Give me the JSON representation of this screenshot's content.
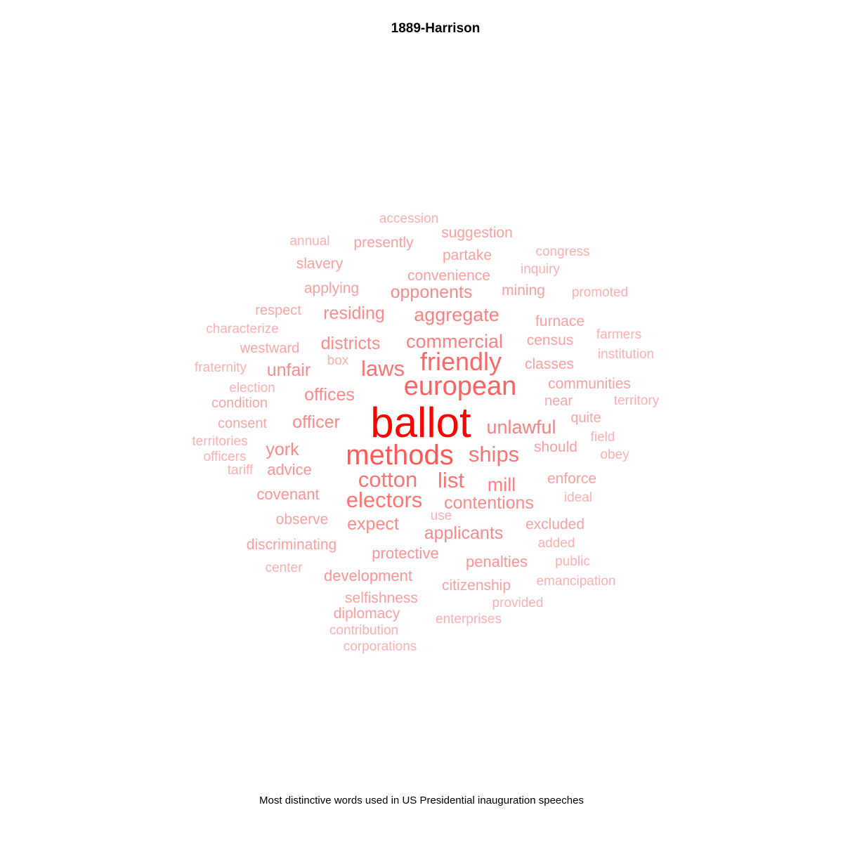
{
  "chart_data": {
    "type": "wordcloud",
    "title": "1889-Harrison",
    "caption": "Most distinctive words used in US Presidential inauguration speeches",
    "words": [
      {
        "text": "ballot",
        "weight": 1.0,
        "color": "#ff0000"
      },
      {
        "text": "methods",
        "weight": 0.62,
        "color": "#ff5a5a"
      },
      {
        "text": "european",
        "weight": 0.58,
        "color": "#ff6060"
      },
      {
        "text": "friendly",
        "weight": 0.55,
        "color": "#ff6666"
      },
      {
        "text": "ships",
        "weight": 0.46,
        "color": "#ff7373"
      },
      {
        "text": "electors",
        "weight": 0.46,
        "color": "#ff7373"
      },
      {
        "text": "cotton",
        "weight": 0.46,
        "color": "#ff7373"
      },
      {
        "text": "list",
        "weight": 0.46,
        "color": "#ff7373"
      },
      {
        "text": "laws",
        "weight": 0.46,
        "color": "#ff7373"
      },
      {
        "text": "unlawful",
        "weight": 0.38,
        "color": "#ff8080"
      },
      {
        "text": "commercial",
        "weight": 0.38,
        "color": "#ff8080"
      },
      {
        "text": "aggregate",
        "weight": 0.38,
        "color": "#ff8080"
      },
      {
        "text": "mill",
        "weight": 0.38,
        "color": "#ff8080"
      },
      {
        "text": "contentions",
        "weight": 0.34,
        "color": "#ff8a8a"
      },
      {
        "text": "offices",
        "weight": 0.34,
        "color": "#ff8a8a"
      },
      {
        "text": "officer",
        "weight": 0.34,
        "color": "#ff8a8a"
      },
      {
        "text": "districts",
        "weight": 0.34,
        "color": "#ff8a8a"
      },
      {
        "text": "opponents",
        "weight": 0.34,
        "color": "#ff8a8a"
      },
      {
        "text": "residing",
        "weight": 0.34,
        "color": "#ff8a8a"
      },
      {
        "text": "expect",
        "weight": 0.34,
        "color": "#ff8a8a"
      },
      {
        "text": "applicants",
        "weight": 0.34,
        "color": "#ff8a8a"
      },
      {
        "text": "unfair",
        "weight": 0.34,
        "color": "#ff8a8a"
      },
      {
        "text": "york",
        "weight": 0.34,
        "color": "#ff8a8a"
      },
      {
        "text": "development",
        "weight": 0.3,
        "color": "#ff9494"
      },
      {
        "text": "protective",
        "weight": 0.3,
        "color": "#ff9494"
      },
      {
        "text": "penalties",
        "weight": 0.3,
        "color": "#ff9494"
      },
      {
        "text": "covenant",
        "weight": 0.3,
        "color": "#ff9494"
      },
      {
        "text": "advice",
        "weight": 0.3,
        "color": "#ff9494"
      },
      {
        "text": "citizenship",
        "weight": 0.28,
        "color": "#ffa0a0"
      },
      {
        "text": "enforce",
        "weight": 0.28,
        "color": "#ffa0a0"
      },
      {
        "text": "classes",
        "weight": 0.28,
        "color": "#ffa0a0"
      },
      {
        "text": "should",
        "weight": 0.28,
        "color": "#ffa0a0"
      },
      {
        "text": "furnace",
        "weight": 0.28,
        "color": "#ffa0a0"
      },
      {
        "text": "selfishness",
        "weight": 0.28,
        "color": "#ffa0a0"
      },
      {
        "text": "observe",
        "weight": 0.28,
        "color": "#ffa0a0"
      },
      {
        "text": "excluded",
        "weight": 0.28,
        "color": "#ffa0a0"
      },
      {
        "text": "communities",
        "weight": 0.28,
        "color": "#ffa0a0"
      },
      {
        "text": "suggestion",
        "weight": 0.28,
        "color": "#ffa0a0"
      },
      {
        "text": "presently",
        "weight": 0.28,
        "color": "#ffa0a0"
      },
      {
        "text": "convenience",
        "weight": 0.28,
        "color": "#ffa0a0"
      },
      {
        "text": "partake",
        "weight": 0.28,
        "color": "#ffa0a0"
      },
      {
        "text": "slavery",
        "weight": 0.28,
        "color": "#ffa0a0"
      },
      {
        "text": "applying",
        "weight": 0.28,
        "color": "#ffa0a0"
      },
      {
        "text": "mining",
        "weight": 0.28,
        "color": "#ffa0a0"
      },
      {
        "text": "discriminating",
        "weight": 0.28,
        "color": "#ffa0a0"
      },
      {
        "text": "diplomacy",
        "weight": 0.28,
        "color": "#ffa0a0"
      },
      {
        "text": "census",
        "weight": 0.28,
        "color": "#ffa0a0"
      },
      {
        "text": "westward",
        "weight": 0.26,
        "color": "#ffa5a5"
      },
      {
        "text": "respect",
        "weight": 0.26,
        "color": "#ffa5a5"
      },
      {
        "text": "condition",
        "weight": 0.26,
        "color": "#ffa5a5"
      },
      {
        "text": "consent",
        "weight": 0.26,
        "color": "#ffa5a5"
      },
      {
        "text": "quite",
        "weight": 0.26,
        "color": "#ffa5a5"
      },
      {
        "text": "near",
        "weight": 0.26,
        "color": "#ffa5a5"
      },
      {
        "text": "enterprises",
        "weight": 0.24,
        "color": "#ffb0b0"
      },
      {
        "text": "provided",
        "weight": 0.24,
        "color": "#ffb0b0"
      },
      {
        "text": "contribution",
        "weight": 0.24,
        "color": "#ffb0b0"
      },
      {
        "text": "box",
        "weight": 0.24,
        "color": "#ffb0b0"
      },
      {
        "text": "election",
        "weight": 0.24,
        "color": "#ffb0b0"
      },
      {
        "text": "fraternity",
        "weight": 0.24,
        "color": "#ffb0b0"
      },
      {
        "text": "territories",
        "weight": 0.24,
        "color": "#ffb0b0"
      },
      {
        "text": "officers",
        "weight": 0.24,
        "color": "#ffb0b0"
      },
      {
        "text": "characterize",
        "weight": 0.24,
        "color": "#ffb0b0"
      },
      {
        "text": "added",
        "weight": 0.24,
        "color": "#ffb0b0"
      },
      {
        "text": "public",
        "weight": 0.24,
        "color": "#ffb0b0"
      },
      {
        "text": "emancipation",
        "weight": 0.24,
        "color": "#ffb0b0"
      },
      {
        "text": "ideal",
        "weight": 0.24,
        "color": "#ffb0b0"
      },
      {
        "text": "obey",
        "weight": 0.24,
        "color": "#ffb0b0"
      },
      {
        "text": "field",
        "weight": 0.24,
        "color": "#ffb0b0"
      },
      {
        "text": "territory",
        "weight": 0.24,
        "color": "#ffb0b0"
      },
      {
        "text": "institution",
        "weight": 0.24,
        "color": "#ffb0b0"
      },
      {
        "text": "farmers",
        "weight": 0.24,
        "color": "#ffb0b0"
      },
      {
        "text": "promoted",
        "weight": 0.24,
        "color": "#ffb0b0"
      },
      {
        "text": "inquiry",
        "weight": 0.24,
        "color": "#ffb0b0"
      },
      {
        "text": "congress",
        "weight": 0.24,
        "color": "#ffb0b0"
      },
      {
        "text": "accession",
        "weight": 0.24,
        "color": "#ffb0b0"
      },
      {
        "text": "annual",
        "weight": 0.24,
        "color": "#ffb0b0"
      },
      {
        "text": "corporations",
        "weight": 0.24,
        "color": "#ffb0b0"
      },
      {
        "text": "center",
        "weight": 0.24,
        "color": "#ffb0b0"
      },
      {
        "text": "use",
        "weight": 0.24,
        "color": "#ffb0b0"
      },
      {
        "text": "tariff",
        "weight": 0.24,
        "color": "#ffb0b0"
      }
    ]
  }
}
